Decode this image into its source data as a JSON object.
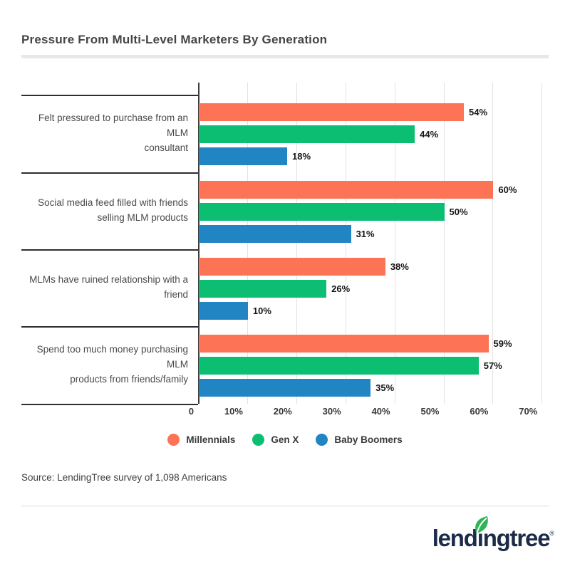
{
  "page": {
    "title": "Pressure From Multi-Level Marketers By Generation",
    "source": "Source: LendingTree survey of 1,098 Americans",
    "logo_text": "lendingtree",
    "logo_reg": "®"
  },
  "colors": {
    "millennials_orange": "#fc7355",
    "genx_green": "#0cbe71",
    "boomers_blue": "#2185c4",
    "logo_navy": "#1c2b47",
    "leaf_green": "#2fb457",
    "gridline_gray": "#e2e2e2"
  },
  "chart_data": {
    "type": "bar",
    "orientation": "horizontal",
    "title": "Pressure From Multi-Level Marketers By Generation",
    "categories": [
      "Felt pressured to purchase from an MLM\nconsultant",
      "Social media feed filled with friends\nselling MLM products",
      "MLMs have ruined relationship with a\nfriend",
      "Spend too much money purchasing MLM\nproducts from friends/family"
    ],
    "series": [
      {
        "name": "Millennials",
        "color": "#fc7355",
        "values": [
          54,
          60,
          38,
          59
        ]
      },
      {
        "name": "Gen X",
        "color": "#0cbe71",
        "values": [
          44,
          50,
          26,
          57
        ]
      },
      {
        "name": "Baby Boomers",
        "color": "#2185c4",
        "values": [
          18,
          31,
          10,
          35
        ]
      }
    ],
    "value_suffix": "%",
    "x_ticks": [
      "0",
      "10%",
      "20%",
      "30%",
      "40%",
      "50%",
      "60%",
      "70%"
    ],
    "xlim": [
      0,
      70
    ],
    "grid": true,
    "legend_position": "bottom"
  }
}
